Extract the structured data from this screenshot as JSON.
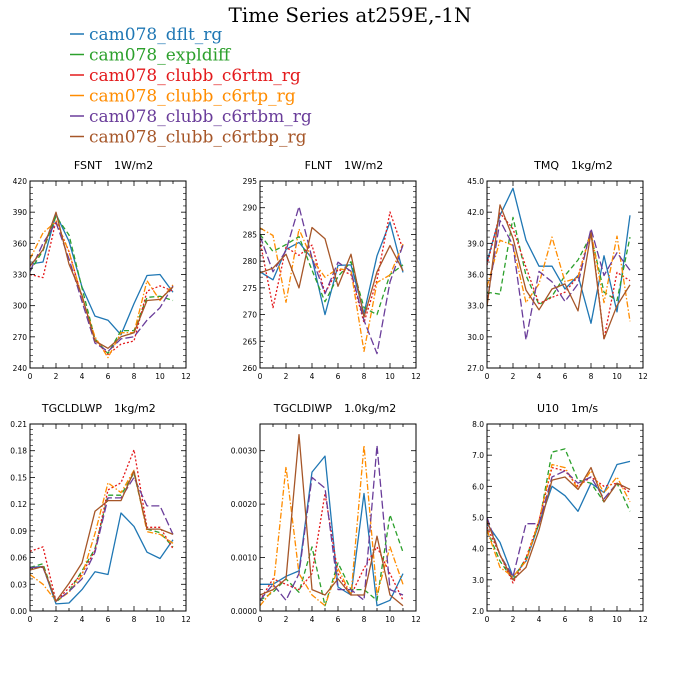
{
  "title": "Time Series at259E,-1N",
  "legend": [
    {
      "label": "cam078_dflt_rg",
      "color": "#1f77b4",
      "dash": "solid"
    },
    {
      "label": "cam078_expldiff",
      "color": "#2ca02c",
      "dash": "dashed"
    },
    {
      "label": "cam078_clubb_c6rtm_rg",
      "color": "#e31a1c",
      "dash": "dotted"
    },
    {
      "label": "cam078_clubb_c6rtp_rg",
      "color": "#ff8c00",
      "dash": "dashdot"
    },
    {
      "label": "cam078_clubb_c6rtbm_rg",
      "color": "#6a3d9a",
      "dash": "longdash"
    },
    {
      "label": "cam078_clubb_c6rtbp_rg",
      "color": "#a65628",
      "dash": "solid"
    }
  ],
  "chart_data": [
    {
      "type": "line",
      "title": "FSNT",
      "units": "1W/m2",
      "x": [
        0,
        1,
        2,
        3,
        4,
        5,
        6,
        7,
        8,
        9,
        10,
        11
      ],
      "xlim": [
        0,
        12
      ],
      "xticks": [
        0,
        2,
        4,
        6,
        8,
        10,
        12
      ],
      "ylim": [
        240,
        420
      ],
      "yticks": [
        "240",
        "270",
        "300",
        "330",
        "360",
        "390",
        "420"
      ],
      "series": [
        {
          "name": "cam078_dflt_rg",
          "values": [
            340,
            342,
            388,
            362,
            318,
            290,
            286,
            272,
            302,
            329,
            330,
            313
          ]
        },
        {
          "name": "cam078_expldiff",
          "values": [
            333,
            353,
            386,
            368,
            317,
            268,
            254,
            276,
            276,
            308,
            309,
            305
          ]
        },
        {
          "name": "cam078_clubb_c6rtm_rg",
          "values": [
            330,
            327,
            382,
            352,
            308,
            267,
            253,
            263,
            266,
            314,
            319,
            314
          ]
        },
        {
          "name": "cam078_clubb_c6rtp_rg",
          "values": [
            345,
            370,
            381,
            352,
            308,
            270,
            250,
            274,
            274,
            324,
            305,
            320
          ]
        },
        {
          "name": "cam078_clubb_c6rtbm_rg",
          "values": [
            333,
            360,
            380,
            345,
            304,
            264,
            256,
            268,
            270,
            286,
            298,
            319
          ]
        },
        {
          "name": "cam078_clubb_c6rtbp_rg",
          "values": [
            338,
            354,
            390,
            340,
            310,
            266,
            259,
            270,
            274,
            305,
            306,
            318
          ]
        }
      ]
    },
    {
      "type": "line",
      "title": "FLNT",
      "units": "1W/m2",
      "x": [
        0,
        1,
        2,
        3,
        4,
        5,
        6,
        7,
        8,
        9,
        10,
        11
      ],
      "xlim": [
        0,
        12
      ],
      "xticks": [
        0,
        2,
        4,
        6,
        8,
        10,
        12
      ],
      "ylim": [
        260,
        295
      ],
      "yticks": [
        "260",
        "265",
        "270",
        "275",
        "280",
        "285",
        "290",
        "295"
      ],
      "series": [
        {
          "name": "cam078_dflt_rg",
          "values": [
            278,
            276.5,
            282.2,
            283.5,
            280.5,
            270,
            279.2,
            279.3,
            270.2,
            281,
            287.3,
            277.9
          ]
        },
        {
          "name": "cam078_expldiff",
          "values": [
            285,
            281.8,
            283.1,
            284.6,
            278.3,
            272.4,
            277.1,
            279.9,
            271.3,
            270,
            277.5,
            279.3
          ]
        },
        {
          "name": "cam078_clubb_c6rtm_rg",
          "values": [
            283.8,
            271.3,
            282.6,
            281.1,
            283,
            274,
            278.5,
            277.5,
            268.5,
            276.5,
            289.2,
            282.2
          ]
        },
        {
          "name": "cam078_clubb_c6rtp_rg",
          "values": [
            286.2,
            284.8,
            272.3,
            286,
            280.4,
            277,
            278.6,
            278.2,
            263.1,
            276,
            277.4,
            283.2
          ]
        },
        {
          "name": "cam078_clubb_c6rtbm_rg",
          "values": [
            284.7,
            278,
            282,
            290.2,
            280.6,
            273.9,
            279.8,
            278.1,
            268.9,
            262.7,
            276.1,
            283
          ]
        },
        {
          "name": "cam078_clubb_c6rtbp_rg",
          "values": [
            277.8,
            278.7,
            281.3,
            275,
            286.3,
            284.2,
            275.3,
            281.3,
            269.5,
            278,
            282.9,
            278.2
          ]
        }
      ]
    },
    {
      "type": "line",
      "title": "TMQ",
      "units": "1kg/m2",
      "x": [
        0,
        1,
        2,
        3,
        4,
        5,
        6,
        7,
        8,
        9,
        10,
        11
      ],
      "xlim": [
        0,
        12
      ],
      "xticks": [
        0,
        2,
        4,
        6,
        8,
        10,
        12
      ],
      "ylim": [
        27,
        45
      ],
      "yticks": [
        "27.0",
        "30.0",
        "33.0",
        "36.0",
        "39.0",
        "42.0",
        "45.0"
      ],
      "series": [
        {
          "name": "cam078_dflt_rg",
          "values": [
            37.2,
            41.7,
            44.3,
            39.3,
            36.8,
            36.8,
            34.6,
            35.9,
            31.3,
            37.8,
            32.4,
            41.7
          ]
        },
        {
          "name": "cam078_expldiff",
          "values": [
            34.3,
            34.1,
            41.5,
            35.9,
            33.1,
            33.9,
            35.9,
            37.4,
            39.8,
            34.3,
            33.5,
            39.6
          ]
        },
        {
          "name": "cam078_clubb_c6rtm_rg",
          "values": [
            36.9,
            41.9,
            40.4,
            36.7,
            33.2,
            33.8,
            34.3,
            35.8,
            40.2,
            29.8,
            36.2,
            35.4
          ]
        },
        {
          "name": "cam078_clubb_c6rtp_rg",
          "values": [
            34.8,
            39.3,
            38.8,
            33.3,
            35.1,
            39.6,
            35.3,
            35.7,
            40.1,
            33.3,
            39.7,
            31.5
          ]
        },
        {
          "name": "cam078_clubb_c6rtbm_rg",
          "values": [
            33.3,
            41.2,
            38.8,
            29.7,
            36.3,
            35.3,
            33.4,
            35.1,
            40.4,
            35.9,
            38.1,
            36.4
          ]
        },
        {
          "name": "cam078_clubb_c6rtbp_rg",
          "values": [
            32.9,
            42.7,
            39.5,
            34.5,
            32.6,
            34.6,
            35.1,
            32.5,
            40,
            29.8,
            33,
            35
          ]
        }
      ]
    },
    {
      "type": "line",
      "title": "TGCLDLWP",
      "units": "1kg/m2",
      "x": [
        0,
        1,
        2,
        3,
        4,
        5,
        6,
        7,
        8,
        9,
        10,
        11
      ],
      "xlim": [
        0,
        12
      ],
      "xticks": [
        0,
        2,
        4,
        6,
        8,
        10,
        12
      ],
      "ylim": [
        0,
        0.21
      ],
      "yticks": [
        "0.00",
        "0.03",
        "0.06",
        "0.09",
        "0.12",
        "0.15",
        "0.18",
        "0.21"
      ],
      "series": [
        {
          "name": "cam078_dflt_rg",
          "values": [
            0.049,
            0.05,
            0.008,
            0.009,
            0.024,
            0.044,
            0.041,
            0.11,
            0.095,
            0.066,
            0.059,
            0.08
          ]
        },
        {
          "name": "cam078_expldiff",
          "values": [
            0.049,
            0.053,
            0.01,
            0.022,
            0.045,
            0.07,
            0.13,
            0.13,
            0.155,
            0.092,
            0.088,
            0.072
          ]
        },
        {
          "name": "cam078_clubb_c6rtm_rg",
          "values": [
            0.067,
            0.072,
            0.011,
            0.026,
            0.042,
            0.068,
            0.136,
            0.144,
            0.181,
            0.094,
            0.094,
            0.07
          ]
        },
        {
          "name": "cam078_clubb_c6rtp_rg",
          "values": [
            0.041,
            0.03,
            0.011,
            0.021,
            0.04,
            0.087,
            0.144,
            0.133,
            0.158,
            0.089,
            0.086,
            0.076
          ]
        },
        {
          "name": "cam078_clubb_c6rtbm_rg",
          "values": [
            0.049,
            0.049,
            0.011,
            0.022,
            0.036,
            0.066,
            0.127,
            0.127,
            0.15,
            0.118,
            0.118,
            0.086
          ]
        },
        {
          "name": "cam078_clubb_c6rtbp_rg",
          "values": [
            0.046,
            0.05,
            0.011,
            0.031,
            0.054,
            0.112,
            0.124,
            0.124,
            0.157,
            0.092,
            0.092,
            0.086
          ]
        }
      ]
    },
    {
      "type": "line",
      "title": "TGCLDIWP",
      "units": "1.0kg/m2",
      "x": [
        0,
        1,
        2,
        3,
        4,
        5,
        6,
        7,
        8,
        9,
        10,
        11
      ],
      "xlim": [
        0,
        12
      ],
      "xticks": [
        0,
        2,
        4,
        6,
        8,
        10,
        12
      ],
      "ylim": [
        0,
        0.0035
      ],
      "yticks": [
        "0.0000",
        "0.0010",
        "0.0020",
        "0.0030"
      ],
      "series": [
        {
          "name": "cam078_dflt_rg",
          "values": [
            0.0005,
            0.0005,
            0.00065,
            0.00075,
            0.0026,
            0.0029,
            0.00045,
            0.0003,
            0.0022,
            0.0001,
            0.0002,
            0.0007
          ]
        },
        {
          "name": "cam078_expldiff",
          "values": [
            0.0002,
            0.00035,
            0.0006,
            0.00035,
            0.0012,
            0.0001,
            0.0009,
            0.0004,
            0.0004,
            0.0002,
            0.0018,
            0.0011
          ]
        },
        {
          "name": "cam078_clubb_c6rtm_rg",
          "values": [
            0.0002,
            0.0006,
            0.0005,
            0.0004,
            0.0007,
            0.0022,
            0.0007,
            0.0003,
            0.0008,
            0.0012,
            0.0007,
            0.0002
          ]
        },
        {
          "name": "cam078_clubb_c6rtp_rg",
          "values": [
            0.0001,
            0.0004,
            0.0027,
            0.0007,
            0.0003,
            0.0001,
            0.0008,
            0.0003,
            0.0031,
            0.0003,
            0.0012,
            0.0005
          ]
        },
        {
          "name": "cam078_clubb_c6rtbm_rg",
          "values": [
            0.0002,
            0.0005,
            0.0002,
            0.0007,
            0.0025,
            0.0023,
            0.0004,
            0.0004,
            0.0002,
            0.0031,
            0.0004,
            0.0003
          ]
        },
        {
          "name": "cam078_clubb_c6rtbp_rg",
          "values": [
            0.0003,
            0.0004,
            0.0006,
            0.0033,
            0.0004,
            0.0003,
            0.0006,
            0.0003,
            0.0003,
            0.0014,
            0.0003,
            0.0001
          ]
        }
      ]
    },
    {
      "type": "line",
      "title": "U10",
      "units": "1m/s",
      "x": [
        0,
        1,
        2,
        3,
        4,
        5,
        6,
        7,
        8,
        9,
        10,
        11
      ],
      "xlim": [
        0,
        12
      ],
      "xticks": [
        0,
        2,
        4,
        6,
        8,
        10,
        12
      ],
      "ylim": [
        2,
        8
      ],
      "yticks": [
        "2.0",
        "3.0",
        "4.0",
        "5.0",
        "6.0",
        "7.0",
        "8.0"
      ],
      "series": [
        {
          "name": "cam078_dflt_rg",
          "values": [
            4.8,
            4.2,
            3.1,
            3.6,
            4.8,
            6,
            5.7,
            5.2,
            6.1,
            5.8,
            6.7,
            6.8
          ]
        },
        {
          "name": "cam078_expldiff",
          "values": [
            4.6,
            3.6,
            3,
            3.7,
            4.8,
            7.1,
            7.2,
            6.2,
            6.1,
            5.5,
            6.1,
            5.2
          ]
        },
        {
          "name": "cam078_clubb_c6rtm_rg",
          "values": [
            4.7,
            3.8,
            2.9,
            3.7,
            4.9,
            6.6,
            6.5,
            6,
            6.3,
            6,
            6.1,
            5.8
          ]
        },
        {
          "name": "cam078_clubb_c6rtp_rg",
          "values": [
            4.6,
            3.4,
            3.1,
            3.6,
            4.9,
            6.7,
            6.6,
            5.9,
            6.5,
            5.8,
            6.3,
            5.5
          ]
        },
        {
          "name": "cam078_clubb_c6rtbm_rg",
          "values": [
            5,
            3.8,
            3.1,
            4.8,
            4.8,
            6.3,
            6.5,
            6.1,
            6.3,
            5.6,
            6.1,
            5.9
          ]
        },
        {
          "name": "cam078_clubb_c6rtbp_rg",
          "values": [
            4.9,
            3.8,
            3,
            3.4,
            4.6,
            6.2,
            6.3,
            5.9,
            6.6,
            5.5,
            6.1,
            5.9
          ]
        }
      ]
    }
  ]
}
